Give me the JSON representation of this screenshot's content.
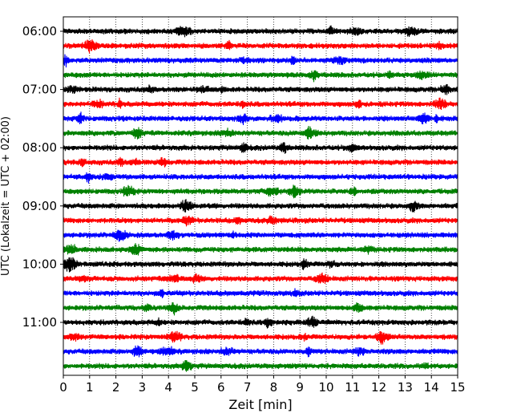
{
  "chart_data": {
    "type": "line",
    "subtype": "helicorder",
    "xlabel": "Zeit  [min]",
    "ylabel": "UTC (Lokalzeit = UTC + 02:00)",
    "xlim": [
      0,
      15
    ],
    "x_ticks": [
      "0",
      "1",
      "2",
      "3",
      "4",
      "5",
      "6",
      "7",
      "8",
      "9",
      "10",
      "11",
      "12",
      "13",
      "14",
      "15"
    ],
    "y_tick_labels": [
      "06:00",
      "07:00",
      "08:00",
      "09:00",
      "10:00",
      "11:00"
    ],
    "row_start_times": [
      "06:00",
      "06:15",
      "06:30",
      "06:45",
      "07:00",
      "07:15",
      "07:30",
      "07:45",
      "08:00",
      "08:15",
      "08:30",
      "08:45",
      "09:00",
      "09:15",
      "09:30",
      "09:45",
      "10:00",
      "10:15",
      "10:30",
      "10:45",
      "11:00",
      "11:15",
      "11:30",
      "11:45"
    ],
    "row_minutes": 15,
    "trace_colors": [
      "#000000",
      "#ff0000",
      "#0000ff",
      "#008000"
    ],
    "vertical_grid": "dotted",
    "horizontal_grid": false,
    "legend": "none"
  }
}
